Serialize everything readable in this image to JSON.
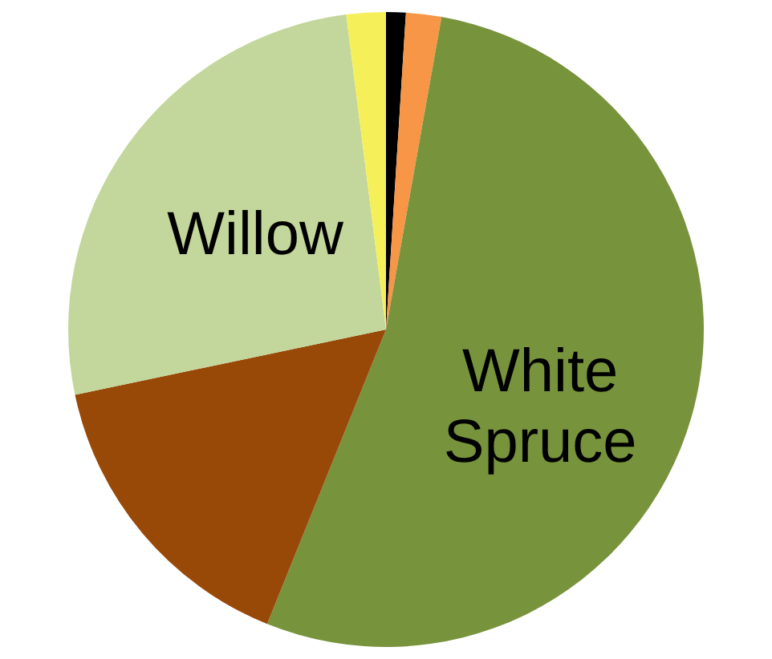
{
  "chart_data": {
    "type": "pie",
    "categories": [
      null,
      null,
      "White Spruce",
      null,
      "Willow",
      null
    ],
    "values": [
      1.0,
      1.8,
      53.3,
      15.6,
      26.3,
      2.0
    ],
    "colors": [
      "#000000",
      "#f79646",
      "#77933c",
      "#984807",
      "#c3d69b",
      "#f5f05a"
    ]
  }
}
